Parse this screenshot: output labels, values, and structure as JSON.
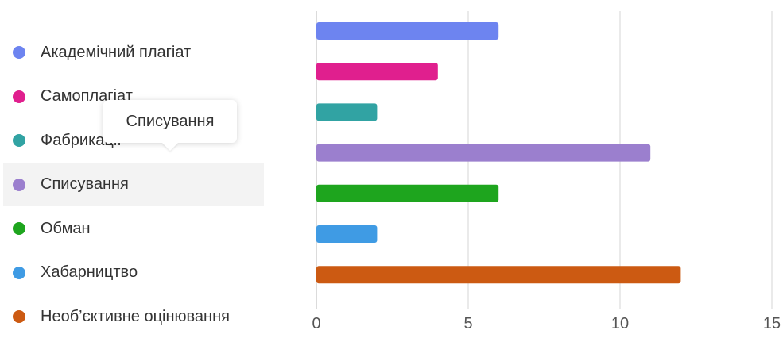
{
  "chart_data": {
    "type": "bar",
    "orientation": "horizontal",
    "categories": [
      "Академічний плагіат",
      "Самоплагіат",
      "Фабрикація",
      "Списування",
      "Обман",
      "Хабарництво",
      "Необ’єктивне оцінювання"
    ],
    "values": [
      6,
      4,
      2,
      11,
      6,
      2,
      12
    ],
    "colors": [
      "#6d84f0",
      "#e01f8e",
      "#31a3a3",
      "#9b7fce",
      "#1ea51e",
      "#3f9be4",
      "#cc5a12"
    ],
    "xlim": [
      0,
      15
    ],
    "xticks": [
      "0",
      "5",
      "10",
      "15"
    ],
    "grid": true,
    "legend": "left"
  },
  "legend": {
    "labels": [
      "Академічний плагіат",
      " Самоплагіат",
      "Фабрикації",
      "Списування",
      "Обман",
      "Хабарництво",
      "Необ’єктивне оцінювання"
    ],
    "hovered_index": 3
  },
  "tooltip": {
    "text": "Списування"
  }
}
